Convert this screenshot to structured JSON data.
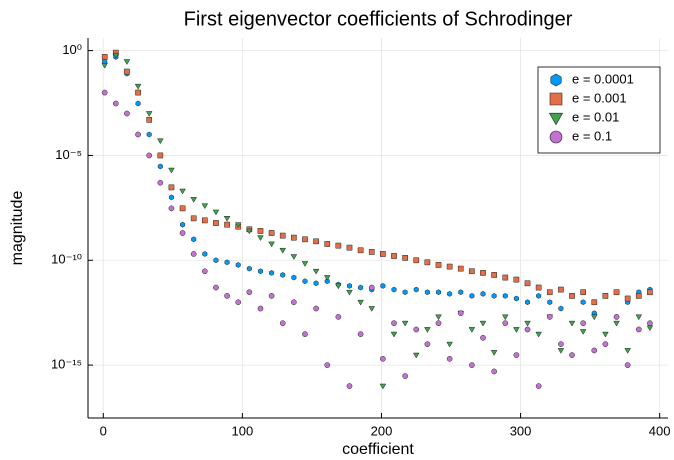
{
  "chart_data": {
    "type": "scatter",
    "title": "First eigenvector coefficients of Schrodinger",
    "x_label": "coefficient",
    "y_label": "magnitude",
    "xlim": [
      -11,
      406
    ],
    "xticks": [
      0,
      100,
      200,
      300,
      400
    ],
    "ylim": [
      3e-18,
      4
    ],
    "log_y": true,
    "yticks": [
      {
        "value": 1,
        "label": "10⁰"
      },
      {
        "value": 1e-05,
        "label": "10⁻⁵"
      },
      {
        "value": 1e-10,
        "label": "10⁻¹⁰"
      },
      {
        "value": 1e-15,
        "label": "10⁻¹⁵"
      }
    ],
    "grid": true,
    "legend": "top right",
    "x": [
      1,
      9,
      17,
      25,
      33,
      41,
      49,
      57,
      65,
      73,
      81,
      89,
      97,
      105,
      113,
      121,
      129,
      137,
      145,
      153,
      161,
      169,
      177,
      185,
      193,
      201,
      209,
      217,
      225,
      233,
      241,
      249,
      257,
      265,
      273,
      281,
      289,
      297,
      305,
      313,
      321,
      329,
      337,
      345,
      353,
      361,
      369,
      377,
      385,
      393
    ],
    "series": [
      {
        "name": "e = 0.0001",
        "color": "#009AFA",
        "marker": "hexagon",
        "values": [
          0.3,
          0.5,
          0.08,
          0.003,
          0.0001,
          3e-06,
          1e-07,
          5e-09,
          1e-09,
          2e-10,
          1e-10,
          8e-11,
          6e-11,
          4e-11,
          3e-11,
          2.5e-11,
          2e-11,
          1.5e-11,
          1e-11,
          8e-12,
          1e-11,
          7e-12,
          6e-12,
          5e-12,
          4e-12,
          6e-12,
          4e-12,
          3e-12,
          4e-12,
          3e-12,
          3e-12,
          2.5e-12,
          3e-12,
          2e-12,
          2.5e-12,
          2e-12,
          2e-12,
          1.5e-12,
          1e-12,
          2e-12,
          1e-12,
          5e-13,
          2e-12,
          1e-12,
          3e-13,
          2e-12,
          3e-12,
          1e-12,
          3e-12,
          4e-12
        ]
      },
      {
        "name": "e = 0.001",
        "color": "#E36F47",
        "marker": "square",
        "values": [
          0.5,
          0.8,
          0.1,
          0.01,
          0.0005,
          1e-05,
          3e-07,
          3e-08,
          1e-08,
          8e-09,
          6e-09,
          5e-09,
          4e-09,
          3e-09,
          2.5e-09,
          2e-09,
          1.5e-09,
          1.2e-09,
          1e-09,
          8e-10,
          6e-10,
          5e-10,
          4e-10,
          3e-10,
          2.5e-10,
          2e-10,
          1.6e-10,
          1.3e-10,
          1e-10,
          8e-11,
          6e-11,
          5e-11,
          4e-11,
          3e-11,
          2.5e-11,
          2e-11,
          1.5e-11,
          1.2e-11,
          8e-12,
          5e-12,
          3e-12,
          4e-12,
          2e-12,
          3e-12,
          1e-12,
          2e-12,
          3e-12,
          1.5e-12,
          2e-12,
          3e-12
        ]
      },
      {
        "name": "e = 0.01",
        "color": "#3EA44E",
        "marker": "triangle-down",
        "values": [
          0.2,
          0.6,
          0.3,
          0.02,
          0.001,
          5e-05,
          2e-06,
          2e-07,
          8e-08,
          4e-08,
          2e-08,
          1e-08,
          5e-09,
          2.5e-09,
          1.2e-09,
          6e-10,
          3e-10,
          1.5e-10,
          7e-11,
          3e-11,
          1.5e-11,
          6e-12,
          3e-12,
          1e-12,
          5e-13,
          1e-16,
          3e-14,
          1e-13,
          3e-15,
          5e-14,
          2e-13,
          1e-14,
          3e-13,
          5e-14,
          1e-13,
          4e-15,
          2e-13,
          5e-14,
          1e-13,
          3e-14,
          2e-13,
          5e-15,
          1e-13,
          4e-14,
          2e-13,
          3e-14,
          1e-13,
          5e-15,
          2e-13,
          6e-14
        ]
      },
      {
        "name": "e = 0.1",
        "color": "#C371D2",
        "marker": "circle",
        "values": [
          0.01,
          0.003,
          0.001,
          0.0001,
          1e-05,
          5e-07,
          3e-08,
          2e-09,
          2e-10,
          3e-11,
          5e-12,
          2e-12,
          1e-12,
          3e-12,
          5e-13,
          2e-12,
          1e-13,
          1e-12,
          3e-14,
          5e-13,
          1e-15,
          2e-13,
          1e-16,
          3e-14,
          5e-12,
          2e-15,
          1e-13,
          3e-16,
          5e-14,
          1e-14,
          1e-13,
          2e-15,
          3e-13,
          1e-15,
          2e-14,
          5e-16,
          1e-13,
          3e-15,
          5e-14,
          1e-16,
          2e-13,
          1e-14,
          3e-15,
          1e-13,
          5e-15,
          1e-14,
          2e-13,
          1e-15,
          5e-14,
          1e-13
        ]
      }
    ]
  }
}
